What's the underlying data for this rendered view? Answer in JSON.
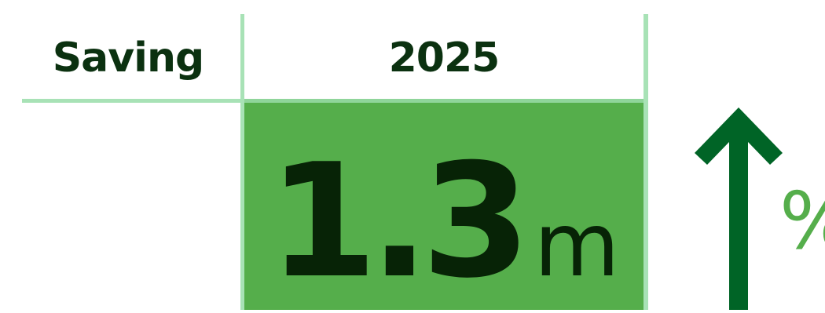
{
  "table": {
    "row_label": "Saving",
    "column_header": "2025",
    "value": {
      "number": "1.3",
      "unit": "m"
    }
  },
  "trend": {
    "direction_icon": "arrow-up-icon",
    "percent_label": "%"
  },
  "colors": {
    "dark_text": "#0b3110",
    "value_cell": "#55ae4b",
    "grid_lines": "#a8e2b6",
    "arrow": "#006426"
  }
}
